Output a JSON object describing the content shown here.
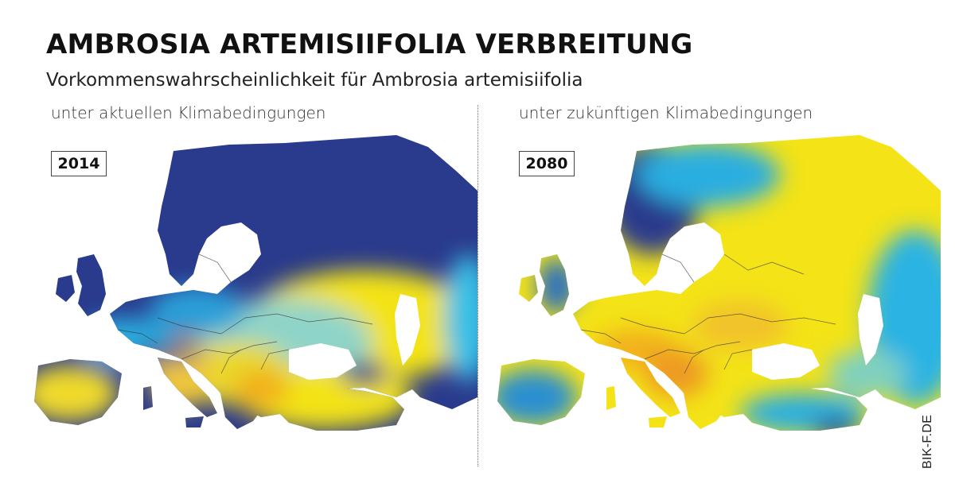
{
  "header": {
    "title": "AMBROSIA ARTEMISIIFOLIA VERBREITUNG",
    "subtitle": "Vorkommenswahrscheinlichkeit für Ambrosia artemisiifolia"
  },
  "panels": [
    {
      "label": "unter aktuellen Klimabedingungen",
      "year": "2014",
      "dominant_color": "#2a3a8c"
    },
    {
      "label": "unter zukünftigen Klimabedingungen",
      "year": "2080",
      "dominant_color": "#f2e11c"
    }
  ],
  "credit": "BIK-F.DE",
  "colors": {
    "low": "#2a3a8c",
    "mid_low": "#1aa6e0",
    "mid": "#7fd0c0",
    "high": "#f3e317",
    "very_high": "#f2b01e",
    "sea": "#ffffff",
    "borders": "#333333"
  }
}
